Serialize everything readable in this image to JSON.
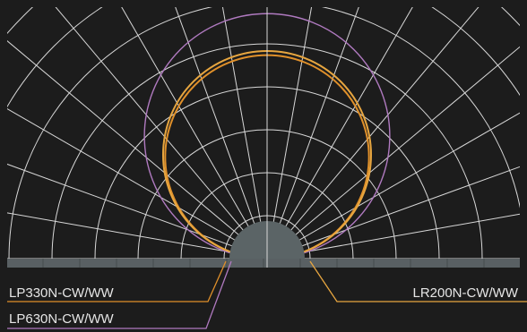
{
  "chart_data": {
    "type": "polar-distribution",
    "grid": true,
    "legend_placement": "bottom",
    "series": [
      {
        "name": "LP330N-CW/WW",
        "color": "#e0902a",
        "shape": "circle",
        "relative_intensity": 0.98
      },
      {
        "name": "LP630N-CW/WW",
        "color": "#b07ac0",
        "shape": "circle",
        "relative_intensity": 1.18
      },
      {
        "name": "LR200N-CW/WW",
        "color": "#e7a640",
        "shape": "circle",
        "relative_intensity": 1.0
      }
    ],
    "labels": {
      "lp330": "LP330N-CW/WW",
      "lp630": "LP630N-CW/WW",
      "lr200": "LR200N-CW/WW"
    }
  },
  "colors": {
    "background": "#1c1c1c",
    "grid": "#d8d8d8",
    "fixture": "#5b6466",
    "baseline": "#596063"
  }
}
